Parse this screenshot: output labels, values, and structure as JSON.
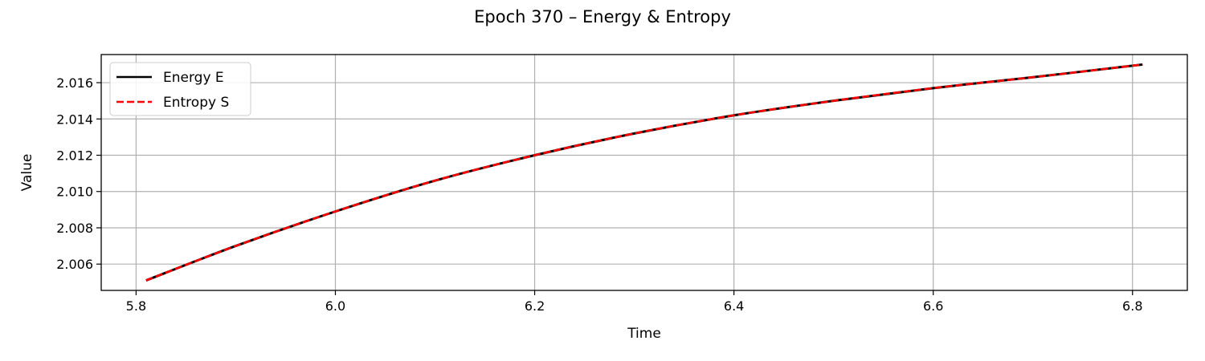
{
  "chart_data": {
    "type": "line",
    "title": "Epoch 370 – Energy & Entropy",
    "xlabel": "Time",
    "ylabel": "Value",
    "xlim": [
      5.765,
      6.855
    ],
    "ylim": [
      2.00455,
      2.01755
    ],
    "xticks": [
      5.8,
      6.0,
      6.2,
      6.4,
      6.6,
      6.8
    ],
    "xtick_labels": [
      "5.8",
      "6.0",
      "6.2",
      "6.4",
      "6.6",
      "6.8"
    ],
    "yticks": [
      2.006,
      2.008,
      2.01,
      2.012,
      2.014,
      2.016
    ],
    "ytick_labels": [
      "2.006",
      "2.008",
      "2.010",
      "2.012",
      "2.014",
      "2.016"
    ],
    "grid": true,
    "legend": "top-left",
    "series": [
      {
        "name": "Energy E",
        "color": "#000000",
        "style": "solid",
        "x": [
          5.81,
          5.9,
          6.0,
          6.1,
          6.2,
          6.3,
          6.4,
          6.5,
          6.6,
          6.7,
          6.81
        ],
        "y": [
          2.0051,
          2.007,
          2.0089,
          2.0106,
          2.012,
          2.0132,
          2.0142,
          2.015,
          2.0157,
          2.0163,
          2.017
        ]
      },
      {
        "name": "Entropy S",
        "color": "#ff0000",
        "style": "dashed",
        "x": [
          5.81,
          5.9,
          6.0,
          6.1,
          6.2,
          6.3,
          6.4,
          6.5,
          6.6,
          6.7,
          6.81
        ],
        "y": [
          2.0051,
          2.007,
          2.0089,
          2.0106,
          2.012,
          2.0132,
          2.0142,
          2.015,
          2.0157,
          2.0163,
          2.017
        ]
      }
    ]
  }
}
